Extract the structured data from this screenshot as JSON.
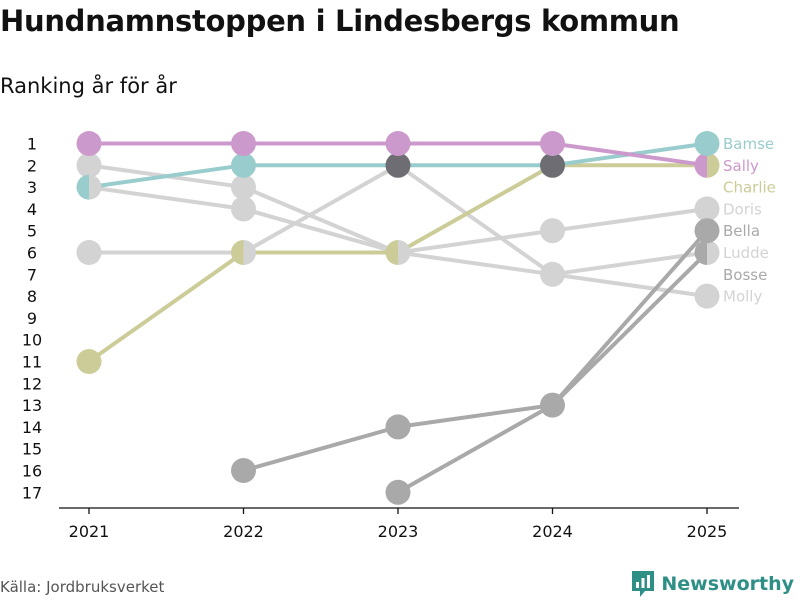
{
  "title": "Hundnamnstoppen i Lindesbergs kommun",
  "subtitle": "Ranking år för år",
  "source": "Källa: Jordbruksverket",
  "brand": {
    "name": "Newsworthy",
    "icon": "newsworthy-logo-icon",
    "color": "#2e8f86"
  },
  "chart_data": {
    "type": "line",
    "subtype": "bump-chart",
    "x": [
      "2021",
      "2022",
      "2023",
      "2024",
      "2025"
    ],
    "y_ticks": [
      1,
      2,
      3,
      4,
      5,
      6,
      7,
      8,
      9,
      10,
      11,
      12,
      13,
      14,
      15,
      16,
      17
    ],
    "ylim": [
      1,
      17
    ],
    "y_reversed": true,
    "xlabel": "",
    "ylabel": "",
    "series": [
      {
        "name": "Doris",
        "color": "#d3d3d3",
        "values": [
          2,
          3,
          6,
          5,
          4
        ],
        "label_rank": 4
      },
      {
        "name": "Molly",
        "color": "#d3d3d3",
        "values": [
          3,
          4,
          6,
          7,
          8
        ],
        "label_rank": 8
      },
      {
        "name": "Ludde",
        "color": "#d3d3d3",
        "values": [
          6,
          6,
          2,
          7,
          6
        ],
        "label_rank": 6
      },
      {
        "name": "Bosse",
        "color": "#a9a9a9",
        "values": [
          null,
          16,
          14,
          13,
          6
        ],
        "label_rank": 7
      },
      {
        "name": "Bella",
        "color": "#a9a9a9",
        "values": [
          null,
          null,
          17,
          13,
          5
        ],
        "label_rank": 5
      },
      {
        "name": "Charlie",
        "color": "#cccc99",
        "values": [
          11,
          6,
          6,
          2,
          2
        ],
        "label_rank": 3
      },
      {
        "name": "Bamse",
        "color": "#99cccc",
        "values": [
          3,
          2,
          2,
          2,
          1
        ],
        "label_rank": 1
      },
      {
        "name": "Sally",
        "color": "#cc99cc",
        "values": [
          1,
          1,
          1,
          1,
          2
        ],
        "label_rank": 2
      }
    ],
    "highlight_points": [
      {
        "x": "2023",
        "y": 2,
        "color": "#6d6d73"
      },
      {
        "x": "2024",
        "y": 2,
        "color": "#6d6d73"
      }
    ]
  }
}
